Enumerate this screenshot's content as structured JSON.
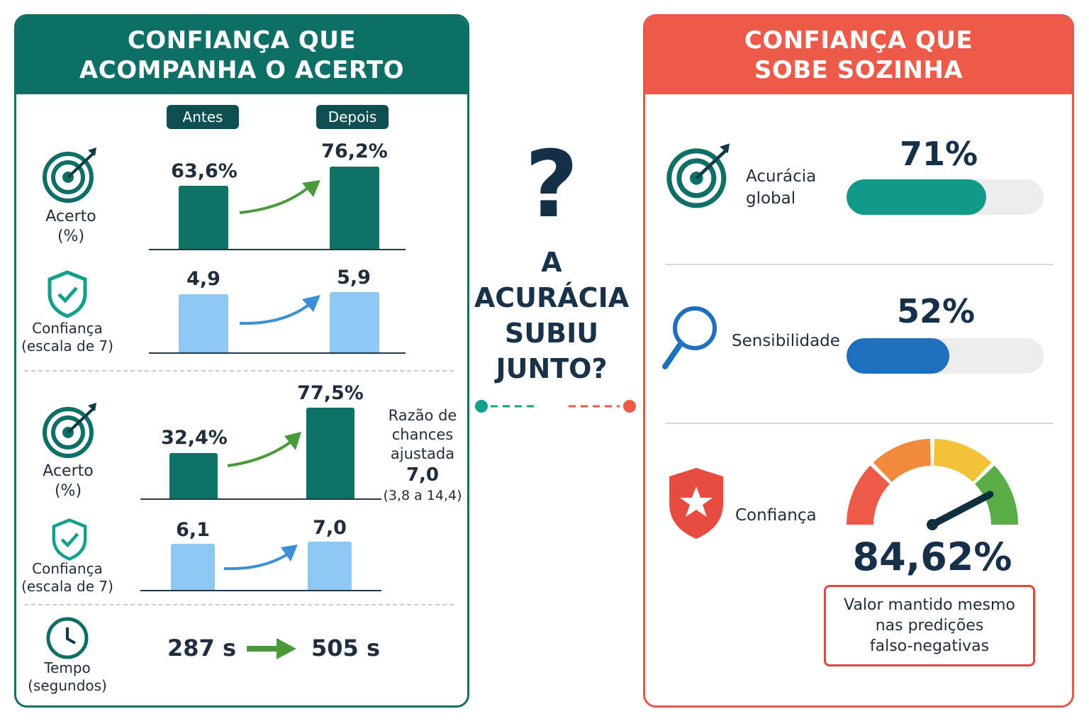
{
  "left_panel": {
    "title_line1": "CONFIANÇA QUE",
    "title_line2": "ACOMPANHA O ACERTO",
    "col_before": "Antes",
    "col_after": "Depois",
    "study1": {
      "accuracy_label1": "Acerto",
      "accuracy_label2": "(%)",
      "accuracy_before": "63,6%",
      "accuracy_after": "76,2%",
      "confidence_label1": "Confiança",
      "confidence_label2": "(escala de 7)",
      "confidence_before": "4,9",
      "confidence_after": "5,9"
    },
    "study2": {
      "accuracy_label1": "Acerto",
      "accuracy_label2": "(%)",
      "accuracy_before": "32,4%",
      "accuracy_after": "77,5%",
      "odds_line1": "Razão de",
      "odds_line2": "chances",
      "odds_line3": "ajustada",
      "odds_value": "7,0",
      "odds_ci": "(3,8 a 14,4)",
      "confidence_label1": "Confiança",
      "confidence_label2": "(escala de 7)",
      "confidence_before": "6,1",
      "confidence_after": "7,0"
    },
    "time": {
      "label1": "Tempo",
      "label2": "(segundos)",
      "before": "287 s",
      "after": "505 s"
    }
  },
  "center": {
    "question_mark": "?",
    "line1": "A",
    "line2": "ACURÁCIA",
    "line3": "SUBIU",
    "line4": "JUNTO?"
  },
  "right_panel": {
    "title_line1": "CONFIANÇA QUE",
    "title_line2": "SOBE SOZINHA",
    "accuracy": {
      "label1": "Acurácia",
      "label2": "global",
      "value": "71%",
      "fraction": 0.71
    },
    "sensitivity": {
      "label": "Sensibilidade",
      "value": "52%",
      "fraction": 0.52
    },
    "confidence": {
      "label": "Confiança",
      "value": "84,62%",
      "fraction": 0.8462
    },
    "note_line1": "Valor mantido mesmo",
    "note_line2": "nas predições",
    "note_line3": "falso-negativas"
  },
  "colors": {
    "teal": "#0e6f66",
    "red": "#ee5a4a",
    "light_blue": "#8ec7f2",
    "blue": "#1f6fbf",
    "green_arrow": "#4a9a3a"
  }
}
